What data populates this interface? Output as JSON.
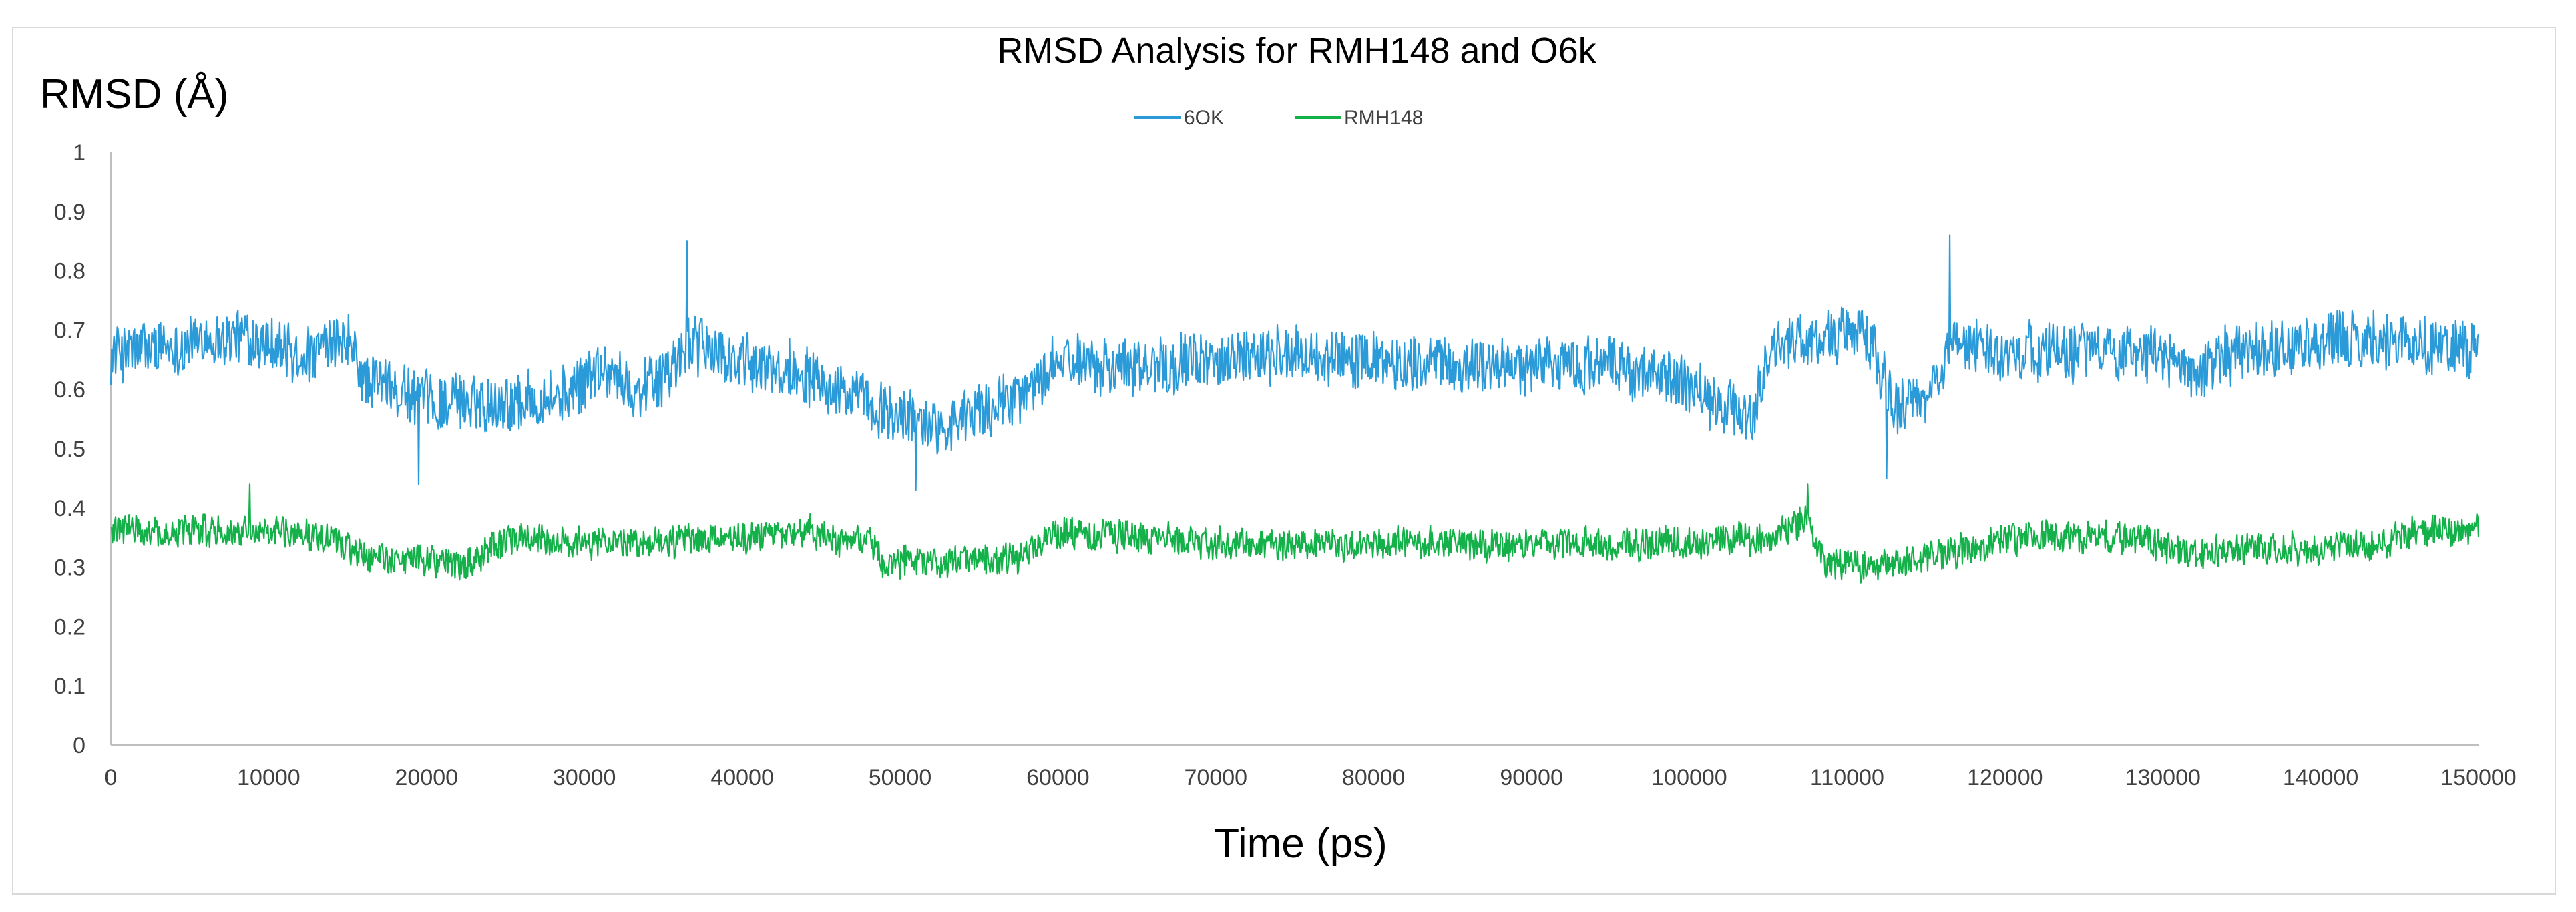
{
  "chart_data": {
    "type": "line",
    "title": "RMSD Analysis for RMH148 and O6k",
    "xlabel": "Time (ps)",
    "ylabel": "RMSD (Å)",
    "xlim": [
      0,
      150000
    ],
    "ylim": [
      0,
      1
    ],
    "xticks": [
      0,
      10000,
      20000,
      30000,
      40000,
      50000,
      60000,
      70000,
      80000,
      90000,
      100000,
      110000,
      120000,
      130000,
      140000,
      150000
    ],
    "yticks": [
      0,
      0.1,
      0.2,
      0.3,
      0.4,
      0.5,
      0.6,
      0.7,
      0.8,
      0.9,
      1
    ],
    "grid": false,
    "legend_position": "top-center",
    "series": [
      {
        "name": "6OK",
        "color": "#2a9ad8",
        "noise_amplitude": 0.09,
        "spikes": [
          [
            36500,
            0.85
          ],
          [
            116500,
            0.86
          ],
          [
            19500,
            0.44
          ],
          [
            51000,
            0.43
          ],
          [
            112500,
            0.45
          ]
        ],
        "x": [
          0,
          3000,
          8000,
          10000,
          12000,
          15000,
          16000,
          20000,
          25000,
          29000,
          31000,
          33000,
          35000,
          37000,
          40000,
          44000,
          46000,
          49000,
          52000,
          54000,
          57000,
          59000,
          61000,
          65000,
          70000,
          75000,
          80000,
          85000,
          90000,
          95000,
          99000,
          101000,
          104000,
          105000,
          109000,
          111000,
          113000,
          115000,
          117000,
          118000,
          120000,
          125000,
          130000,
          132000,
          134000,
          140000,
          145000,
          150000
        ],
        "y": [
          0.66,
          0.67,
          0.69,
          0.68,
          0.65,
          0.68,
          0.62,
          0.58,
          0.58,
          0.59,
          0.64,
          0.6,
          0.62,
          0.68,
          0.64,
          0.63,
          0.6,
          0.56,
          0.54,
          0.55,
          0.58,
          0.62,
          0.65,
          0.64,
          0.65,
          0.66,
          0.65,
          0.64,
          0.64,
          0.64,
          0.62,
          0.58,
          0.55,
          0.67,
          0.69,
          0.7,
          0.57,
          0.58,
          0.69,
          0.67,
          0.66,
          0.67,
          0.66,
          0.62,
          0.66,
          0.68,
          0.68,
          0.67
        ]
      },
      {
        "name": "RMH148",
        "color": "#14b14a",
        "noise_amplitude": 0.05,
        "spikes": [
          [
            8800,
            0.44
          ],
          [
            107500,
            0.44
          ]
        ],
        "x": [
          0,
          5000,
          10000,
          14000,
          16000,
          20000,
          22000,
          24000,
          26000,
          30000,
          35000,
          40000,
          44000,
          46000,
          48000,
          49000,
          55000,
          58000,
          60000,
          70000,
          80000,
          90000,
          100000,
          105000,
          107500,
          108500,
          112000,
          115000,
          118000,
          120000,
          125000,
          129000,
          131000,
          135000,
          140000,
          144000,
          146000,
          150000
        ],
        "y": [
          0.36,
          0.36,
          0.36,
          0.35,
          0.32,
          0.31,
          0.3,
          0.33,
          0.35,
          0.34,
          0.34,
          0.35,
          0.36,
          0.34,
          0.35,
          0.31,
          0.31,
          0.32,
          0.36,
          0.34,
          0.34,
          0.34,
          0.34,
          0.35,
          0.38,
          0.31,
          0.3,
          0.32,
          0.33,
          0.35,
          0.35,
          0.35,
          0.32,
          0.33,
          0.33,
          0.34,
          0.36,
          0.36
        ]
      }
    ]
  }
}
